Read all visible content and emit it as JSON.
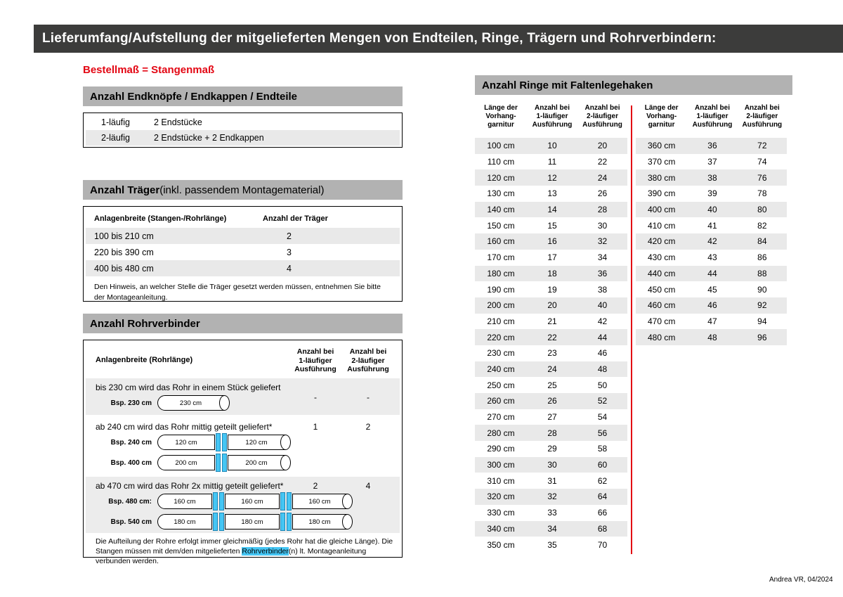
{
  "page": {
    "title": "Lieferumfang/Aufstellung der mitgelieferten Mengen von Endteilen, Ringe, Trägern und Rohrverbindern:",
    "subtitle": "Bestellmaß = Stangenmaß",
    "footer": "Andrea VR, 04/2024"
  },
  "colors": {
    "accent_red": "#e30613",
    "title_bar": "#3c3c3b",
    "section_bar": "#b2b2b2",
    "row_shade": "#e9e9e9",
    "connector_blue": "#45c6f4"
  },
  "endteile": {
    "header": "Anzahl Endknöpfe / Endkappen / Endteile",
    "rows": [
      [
        "1-läufig",
        "2 Endstücke"
      ],
      [
        "2-läufig",
        "2 Endstücke + 2 Endkappen"
      ]
    ]
  },
  "traeger": {
    "header_bold": "Anzahl Träger",
    "header_rest": " (inkl. passendem Montagematerial)",
    "col_width": "Anlagenbreite (Stangen-/Rohrlänge)",
    "col_count": "Anzahl der Träger",
    "rows": [
      [
        "100 bis 210 cm",
        "2"
      ],
      [
        "220 bis 390 cm",
        "3"
      ],
      [
        "400 bis 480 cm",
        "4"
      ]
    ],
    "note": "Den Hinweis, an welcher Stelle die Träger gesetzt werden müssen, entnehmen Sie bitte\nder Montageanleitung."
  },
  "rohrverbinder": {
    "header": "Anzahl Rohrverbinder",
    "col_width": "Anlagenbreite (Rohrlänge)",
    "col_one": "Anzahl bei\n1-läufiger\nAusführung",
    "col_two": "Anzahl bei\n2-läufiger\nAusführung",
    "blocks": [
      {
        "text": "bis 230 cm wird das Rohr in einem Stück geliefert",
        "one": "-",
        "two": "-"
      },
      {
        "text": "ab 240 cm wird das Rohr mittig geteilt geliefert*",
        "one": "1",
        "two": "2"
      },
      {
        "text": "ab 470 cm wird das Rohr 2x mittig geteilt geliefert*",
        "one": "2",
        "two": "4"
      }
    ],
    "examples": [
      {
        "label": "Bsp. 230 cm",
        "segments": [
          "230 cm"
        ]
      },
      {
        "label": "Bsp. 240 cm",
        "segments": [
          "120 cm",
          "120 cm"
        ]
      },
      {
        "label": "Bsp. 400 cm",
        "segments": [
          "200 cm",
          "200 cm"
        ]
      },
      {
        "label": "Bsp. 480 cm:",
        "segments": [
          "160 cm",
          "160 cm",
          "160 cm"
        ]
      },
      {
        "label": "Bsp. 540 cm",
        "segments": [
          "180 cm",
          "180 cm",
          "180 cm"
        ]
      }
    ],
    "note_before": "Die Aufteilung der Rohre erfolgt immer gleichmäßig (jedes Rohr hat die gleiche Länge). Die Stan­gen müssen mit dem/den mitgelieferten ",
    "note_highlight": "Rohrverbinder",
    "note_after": "(n) lt. Montageanleitung verbunden werden."
  },
  "ringe": {
    "header": "Anzahl Ringe mit Faltenlegehaken",
    "col_length": "Länge der\nVorhang-\ngarnitur",
    "col_one": "Anzahl bei\n1-läufiger\nAusführung",
    "col_two": "Anzahl bei\n2-läufiger\nAusführung",
    "table_left": [
      [
        "100 cm",
        "10",
        "20"
      ],
      [
        "110 cm",
        "11",
        "22"
      ],
      [
        "120 cm",
        "12",
        "24"
      ],
      [
        "130 cm",
        "13",
        "26"
      ],
      [
        "140 cm",
        "14",
        "28"
      ],
      [
        "150 cm",
        "15",
        "30"
      ],
      [
        "160 cm",
        "16",
        "32"
      ],
      [
        "170 cm",
        "17",
        "34"
      ],
      [
        "180 cm",
        "18",
        "36"
      ],
      [
        "190 cm",
        "19",
        "38"
      ],
      [
        "200 cm",
        "20",
        "40"
      ],
      [
        "210 cm",
        "21",
        "42"
      ],
      [
        "220 cm",
        "22",
        "44"
      ],
      [
        "230 cm",
        "23",
        "46"
      ],
      [
        "240 cm",
        "24",
        "48"
      ],
      [
        "250 cm",
        "25",
        "50"
      ],
      [
        "260 cm",
        "26",
        "52"
      ],
      [
        "270 cm",
        "27",
        "54"
      ],
      [
        "280 cm",
        "28",
        "56"
      ],
      [
        "290 cm",
        "29",
        "58"
      ],
      [
        "300 cm",
        "30",
        "60"
      ],
      [
        "310 cm",
        "31",
        "62"
      ],
      [
        "320 cm",
        "32",
        "64"
      ],
      [
        "330 cm",
        "33",
        "66"
      ],
      [
        "340 cm",
        "34",
        "68"
      ],
      [
        "350 cm",
        "35",
        "70"
      ]
    ],
    "table_right": [
      [
        "360 cm",
        "36",
        "72"
      ],
      [
        "370 cm",
        "37",
        "74"
      ],
      [
        "380 cm",
        "38",
        "76"
      ],
      [
        "390 cm",
        "39",
        "78"
      ],
      [
        "400 cm",
        "40",
        "80"
      ],
      [
        "410 cm",
        "41",
        "82"
      ],
      [
        "420 cm",
        "42",
        "84"
      ],
      [
        "430 cm",
        "43",
        "86"
      ],
      [
        "440 cm",
        "44",
        "88"
      ],
      [
        "450 cm",
        "45",
        "90"
      ],
      [
        "460 cm",
        "46",
        "92"
      ],
      [
        "470 cm",
        "47",
        "94"
      ],
      [
        "480 cm",
        "48",
        "96"
      ]
    ]
  }
}
